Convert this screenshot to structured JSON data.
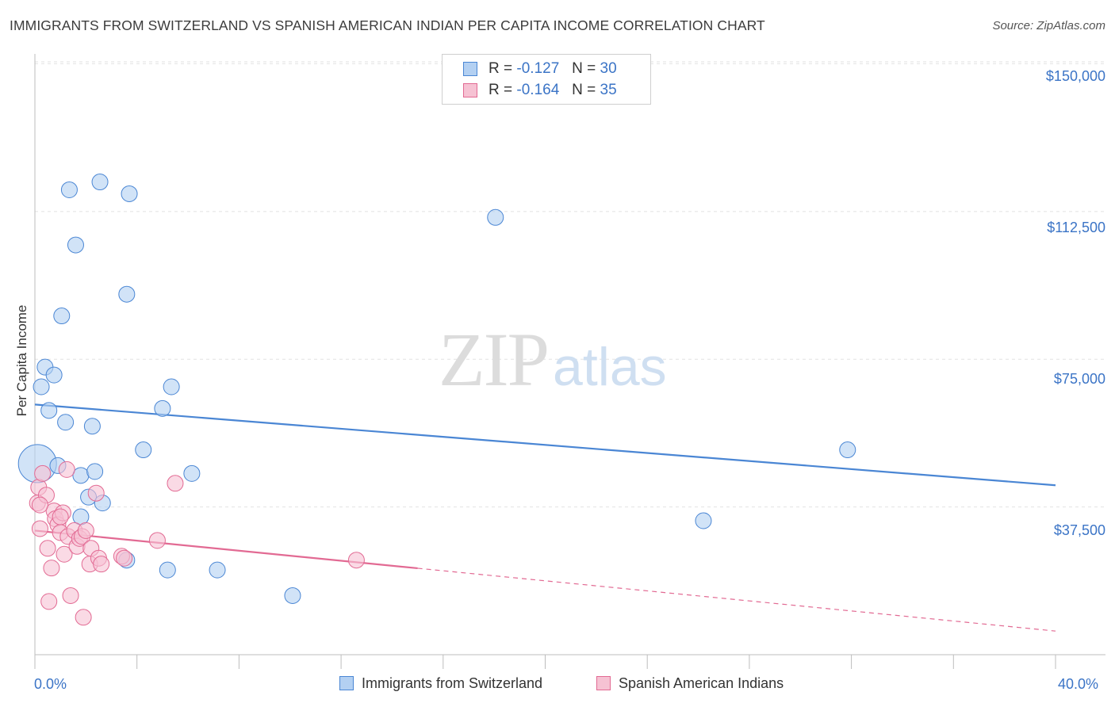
{
  "chart_data": {
    "type": "scatter",
    "title": "IMMIGRANTS FROM SWITZERLAND VS SPANISH AMERICAN INDIAN PER CAPITA INCOME CORRELATION CHART",
    "source": "Source: ZipAtlas.com",
    "ylabel": "Per Capita Income",
    "xlabel": "",
    "xlim": [
      0,
      40
    ],
    "ylim": [
      0,
      152500
    ],
    "y_ticks": [
      {
        "value": 150000,
        "label": "$150,000"
      },
      {
        "value": 112500,
        "label": "$112,500"
      },
      {
        "value": 75000,
        "label": "$75,000"
      },
      {
        "value": 37500,
        "label": "$37,500"
      }
    ],
    "x_tick_labels": {
      "left": "0.0%",
      "right": "40.0%"
    },
    "grid": true,
    "legend_position": "top-center",
    "series": [
      {
        "name": "Immigrants from Switzerland",
        "color": "#4a86d4",
        "fill": "#b3d0f2",
        "legend": {
          "r_label": "R =",
          "r_value": "-0.127",
          "n_label": "N =",
          "n_value": "30"
        },
        "trend": {
          "x0": 0,
          "y0": 63500,
          "x1": 40,
          "y1": 43000,
          "solid_until": 40
        },
        "points": [
          [
            0.1,
            48500,
            24
          ],
          [
            0.25,
            68000,
            10
          ],
          [
            0.4,
            73000,
            10
          ],
          [
            0.55,
            62000,
            10
          ],
          [
            0.75,
            71000,
            10
          ],
          [
            0.9,
            48000,
            10
          ],
          [
            1.05,
            86000,
            10
          ],
          [
            1.2,
            59000,
            10
          ],
          [
            1.35,
            118000,
            10
          ],
          [
            1.6,
            104000,
            10
          ],
          [
            1.8,
            45500,
            10
          ],
          [
            2.1,
            40000,
            10
          ],
          [
            2.25,
            58000,
            10
          ],
          [
            2.35,
            46500,
            10
          ],
          [
            2.55,
            120000,
            10
          ],
          [
            2.65,
            38500,
            10
          ],
          [
            3.6,
            91500,
            10
          ],
          [
            3.7,
            117000,
            10
          ],
          [
            4.25,
            52000,
            10
          ],
          [
            5.0,
            62500,
            10
          ],
          [
            5.35,
            68000,
            10
          ],
          [
            6.15,
            46000,
            10
          ],
          [
            7.15,
            21500,
            10
          ],
          [
            10.1,
            15000,
            10
          ],
          [
            18.05,
            111000,
            10
          ],
          [
            26.2,
            34000,
            10
          ],
          [
            31.85,
            52000,
            10
          ],
          [
            1.8,
            35000,
            10
          ],
          [
            3.6,
            24000,
            10
          ],
          [
            5.2,
            21500,
            10
          ]
        ]
      },
      {
        "name": "Spanish American Indians",
        "color": "#e26a93",
        "fill": "#f6c2d3",
        "legend": {
          "r_label": "R =",
          "r_value": "-0.164",
          "n_label": "N =",
          "n_value": "35"
        },
        "trend": {
          "x0": 0,
          "y0": 31500,
          "x1": 40,
          "y1": 6000,
          "solid_until": 15
        },
        "points": [
          [
            0.1,
            38500,
            10
          ],
          [
            0.15,
            42500,
            10
          ],
          [
            0.2,
            32000,
            10
          ],
          [
            0.3,
            46000,
            10
          ],
          [
            0.45,
            40500,
            10
          ],
          [
            0.5,
            27000,
            10
          ],
          [
            0.55,
            13500,
            10
          ],
          [
            0.65,
            22000,
            10
          ],
          [
            0.75,
            36500,
            10
          ],
          [
            0.8,
            34500,
            10
          ],
          [
            0.9,
            33000,
            10
          ],
          [
            1.0,
            31000,
            10
          ],
          [
            1.1,
            36000,
            10
          ],
          [
            1.15,
            25500,
            10
          ],
          [
            1.25,
            47000,
            10
          ],
          [
            1.3,
            30000,
            10
          ],
          [
            1.4,
            15000,
            10
          ],
          [
            1.55,
            31500,
            10
          ],
          [
            1.65,
            27500,
            10
          ],
          [
            1.75,
            29500,
            10
          ],
          [
            1.85,
            30000,
            10
          ],
          [
            1.9,
            9500,
            10
          ],
          [
            2.0,
            31500,
            10
          ],
          [
            2.15,
            23000,
            10
          ],
          [
            2.2,
            27000,
            10
          ],
          [
            2.4,
            41000,
            10
          ],
          [
            2.5,
            24500,
            10
          ],
          [
            2.6,
            23000,
            10
          ],
          [
            3.4,
            25000,
            10
          ],
          [
            3.5,
            24500,
            10
          ],
          [
            4.8,
            29000,
            10
          ],
          [
            5.5,
            43500,
            10
          ],
          [
            12.6,
            24000,
            10
          ],
          [
            1.0,
            35000,
            10
          ],
          [
            0.2,
            38000,
            10
          ]
        ]
      }
    ]
  }
}
